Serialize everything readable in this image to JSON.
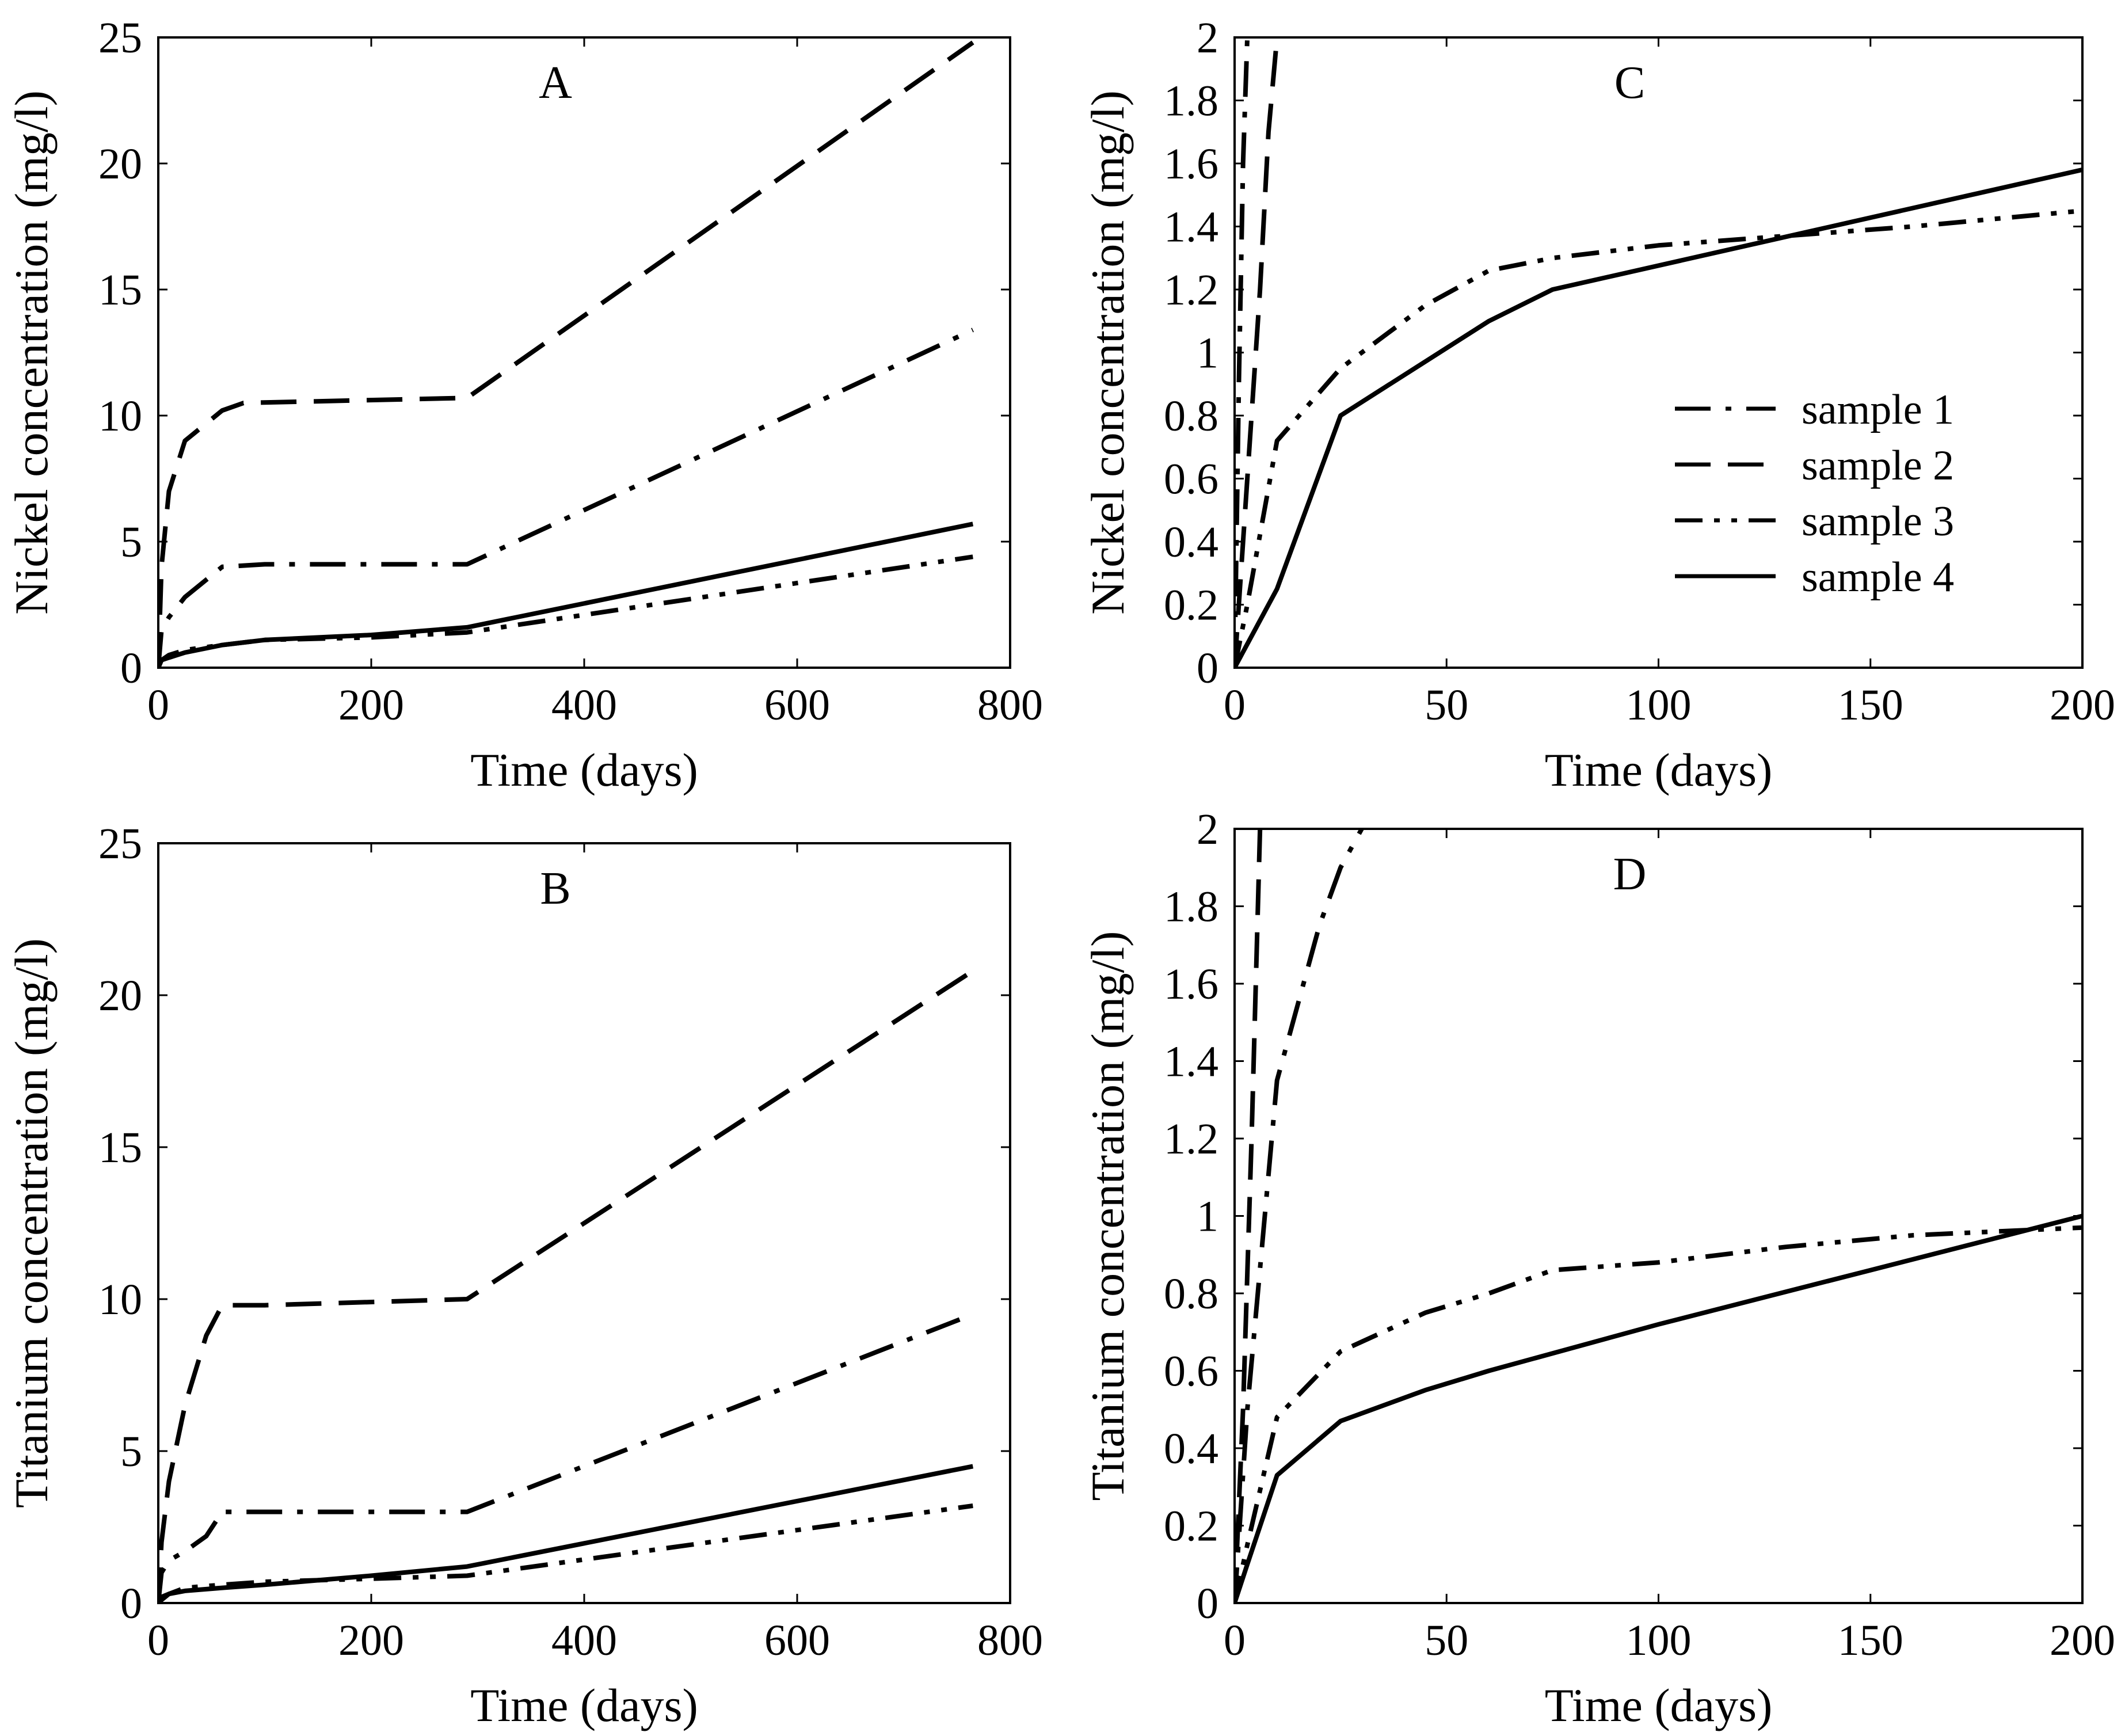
{
  "chart_data": [
    {
      "id": "A",
      "type": "line",
      "title": "A",
      "xlabel": "Time (days)",
      "ylabel": "Nickel concentration (mg/l)",
      "xlim": [
        0,
        800
      ],
      "ylim": [
        0,
        25
      ],
      "xticks": [
        0,
        200,
        400,
        600,
        800
      ],
      "yticks": [
        0,
        5,
        10,
        15,
        20,
        25
      ],
      "xtick_labels": [
        "0",
        "200",
        "400",
        "600",
        "800"
      ],
      "ytick_labels": [
        "0",
        "5",
        "10",
        "15",
        "20",
        "25"
      ],
      "grid": false,
      "series": [
        {
          "name": "sample 1",
          "style": "dash-dot",
          "x": [
            0,
            3,
            10,
            25,
            60,
            100,
            290,
            765
          ],
          "y": [
            0,
            1.5,
            2.0,
            2.8,
            4.0,
            4.1,
            4.1,
            13.4
          ]
        },
        {
          "name": "sample 2",
          "style": "dash",
          "x": [
            0,
            3,
            10,
            25,
            60,
            80,
            290,
            765
          ],
          "y": [
            0,
            4.0,
            7.0,
            9.0,
            10.2,
            10.5,
            10.7,
            24.8
          ]
        },
        {
          "name": "sample 3",
          "style": "dash-dot-dot",
          "x": [
            0,
            3,
            10,
            25,
            60,
            100,
            200,
            290,
            765
          ],
          "y": [
            0,
            0.3,
            0.5,
            0.7,
            0.9,
            1.1,
            1.2,
            1.4,
            4.4
          ]
        },
        {
          "name": "sample 4",
          "style": "solid",
          "x": [
            0,
            3,
            10,
            25,
            60,
            100,
            200,
            290,
            765
          ],
          "y": [
            0,
            0.3,
            0.4,
            0.6,
            0.9,
            1.1,
            1.3,
            1.6,
            5.7
          ]
        }
      ]
    },
    {
      "id": "C",
      "type": "line",
      "title": "C",
      "xlabel": "Time (days)",
      "ylabel": "Nickel concentration (mg/l)",
      "xlim": [
        0,
        200
      ],
      "ylim": [
        0,
        2
      ],
      "xticks": [
        0,
        50,
        100,
        150,
        200
      ],
      "yticks": [
        0,
        0.2,
        0.4,
        0.6,
        0.8,
        1,
        1.2,
        1.4,
        1.6,
        1.8,
        2
      ],
      "xtick_labels": [
        "0",
        "50",
        "100",
        "150",
        "200"
      ],
      "ytick_labels": [
        "0",
        "0.2",
        "0.4",
        "0.6",
        "0.8",
        "1",
        "1.2",
        "1.4",
        "1.6",
        "1.8",
        "2"
      ],
      "grid": false,
      "legend": {
        "position": "right-middle",
        "entries": [
          "sample 1",
          "sample 2",
          "sample 3",
          "sample 4"
        ]
      },
      "series": [
        {
          "name": "sample 1",
          "style": "dash-dot",
          "x": [
            0,
            1,
            2,
            3
          ],
          "y": [
            0,
            0.9,
            1.6,
            2.0
          ]
        },
        {
          "name": "sample 2",
          "style": "dash",
          "x": [
            0,
            3,
            6,
            8,
            10
          ],
          "y": [
            0,
            0.6,
            1.2,
            1.7,
            2.0
          ]
        },
        {
          "name": "sample 3",
          "style": "dash-dot-dot",
          "x": [
            0,
            3,
            10,
            25,
            45,
            60,
            75,
            100,
            130,
            160,
            200
          ],
          "y": [
            0,
            0.2,
            0.72,
            0.95,
            1.15,
            1.26,
            1.3,
            1.34,
            1.37,
            1.4,
            1.45
          ]
        },
        {
          "name": "sample 4",
          "style": "solid",
          "x": [
            0,
            10,
            25,
            60,
            75,
            200
          ],
          "y": [
            0,
            0.25,
            0.8,
            1.1,
            1.2,
            1.58
          ]
        }
      ]
    },
    {
      "id": "B",
      "type": "line",
      "title": "B",
      "xlabel": "Time (days)",
      "ylabel": "Titanium concentration (mg/l)",
      "xlim": [
        0,
        800
      ],
      "ylim": [
        0,
        25
      ],
      "xticks": [
        0,
        200,
        400,
        600,
        800
      ],
      "yticks": [
        0,
        5,
        10,
        15,
        20,
        25
      ],
      "xtick_labels": [
        "0",
        "200",
        "400",
        "600",
        "800"
      ],
      "ytick_labels": [
        "0",
        "5",
        "10",
        "15",
        "20",
        "25"
      ],
      "grid": false,
      "series": [
        {
          "name": "sample 1",
          "style": "dash-dot",
          "x": [
            0,
            3,
            10,
            25,
            45,
            60,
            100,
            290,
            765
          ],
          "y": [
            0,
            1.0,
            1.4,
            1.7,
            2.2,
            3.0,
            3.0,
            3.0,
            9.5
          ]
        },
        {
          "name": "sample 2",
          "style": "dash",
          "x": [
            0,
            3,
            10,
            25,
            45,
            60,
            100,
            290,
            765
          ],
          "y": [
            0,
            2.0,
            4.0,
            6.5,
            8.8,
            9.8,
            9.8,
            10.0,
            20.8
          ]
        },
        {
          "name": "sample 3",
          "style": "dash-dot-dot",
          "x": [
            0,
            3,
            10,
            25,
            60,
            100,
            200,
            290,
            765
          ],
          "y": [
            0,
            0.2,
            0.3,
            0.5,
            0.6,
            0.7,
            0.8,
            0.9,
            3.2
          ]
        },
        {
          "name": "sample 4",
          "style": "solid",
          "x": [
            0,
            3,
            10,
            25,
            60,
            100,
            200,
            290,
            765
          ],
          "y": [
            0,
            0.1,
            0.3,
            0.4,
            0.5,
            0.6,
            0.9,
            1.2,
            4.5
          ]
        }
      ]
    },
    {
      "id": "D",
      "type": "line",
      "title": "D",
      "xlabel": "Time (days)",
      "ylabel": "Titanium concentration (mg/l)",
      "xlim": [
        0,
        200
      ],
      "ylim": [
        0,
        2
      ],
      "xticks": [
        0,
        50,
        100,
        150,
        200
      ],
      "yticks": [
        0,
        0.2,
        0.4,
        0.6,
        0.8,
        1,
        1.2,
        1.4,
        1.6,
        1.8,
        2
      ],
      "xtick_labels": [
        "0",
        "50",
        "100",
        "150",
        "200"
      ],
      "ytick_labels": [
        "0",
        "0.2",
        "0.4",
        "0.6",
        "0.8",
        "1",
        "1.2",
        "1.4",
        "1.6",
        "1.8",
        "2"
      ],
      "grid": false,
      "series": [
        {
          "name": "sample 1",
          "style": "dash-dot",
          "x": [
            0,
            3,
            10,
            20,
            25,
            30
          ],
          "y": [
            0,
            0.5,
            1.35,
            1.75,
            1.9,
            2.0
          ]
        },
        {
          "name": "sample 2",
          "style": "dash",
          "x": [
            0,
            2,
            4,
            6
          ],
          "y": [
            0,
            0.5,
            1.2,
            2.0
          ]
        },
        {
          "name": "sample 3",
          "style": "dash-dot-dot",
          "x": [
            0,
            3,
            10,
            25,
            45,
            60,
            75,
            100,
            130,
            160,
            200
          ],
          "y": [
            0,
            0.15,
            0.48,
            0.65,
            0.75,
            0.8,
            0.86,
            0.88,
            0.92,
            0.95,
            0.97
          ]
        },
        {
          "name": "sample 4",
          "style": "solid",
          "x": [
            0,
            3,
            10,
            25,
            45,
            60,
            100,
            150,
            200
          ],
          "y": [
            0,
            0.1,
            0.33,
            0.47,
            0.55,
            0.6,
            0.72,
            0.86,
            1.0
          ]
        }
      ]
    }
  ],
  "colors": {
    "line": "#000000",
    "background": "#ffffff",
    "frame": "#000000"
  }
}
